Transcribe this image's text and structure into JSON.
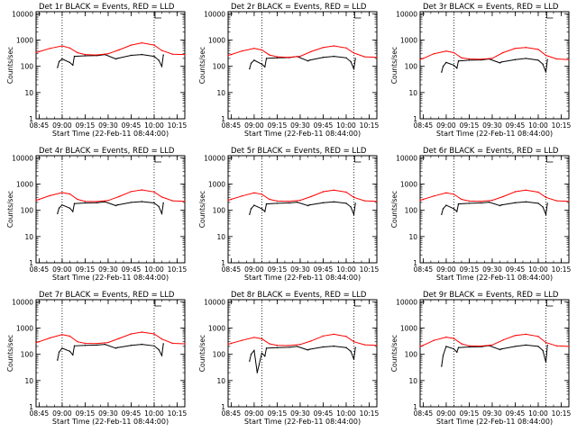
{
  "chart_data": [
    {
      "type": "line",
      "title": "Det 1r BLACK = Events, RED = LLD",
      "xlabel": "Start Time (22-Feb-11 08:44:00)",
      "ylabel": "Counts/sec",
      "x_ticks": [
        "08:45",
        "09:00",
        "09:15",
        "09:30",
        "09:45",
        "10:00",
        "10:15"
      ],
      "y_ticks": [
        "1",
        "10",
        "100",
        "1000",
        "10000"
      ],
      "ylim": [
        1,
        12000
      ],
      "scale_y": "log",
      "grid": false,
      "legend": "none",
      "marker_lines": [
        "09:00",
        "10:00"
      ],
      "series": [
        {
          "color": "#ff0000",
          "x": [
            "08:43",
            "08:45",
            "08:52",
            "09:00",
            "09:05",
            "09:10",
            "09:15",
            "09:22",
            "09:30",
            "09:37",
            "09:45",
            "09:52",
            "10:00",
            "10:05",
            "10:12",
            "10:20"
          ],
          "values": [
            330,
            360,
            480,
            600,
            500,
            330,
            280,
            270,
            300,
            420,
            640,
            780,
            640,
            400,
            290,
            280
          ]
        },
        {
          "color": "#000000",
          "x": [
            "08:57",
            "08:58",
            "09:00",
            "09:05",
            "09:07",
            "09:08",
            "09:15",
            "09:23",
            "09:28",
            "09:35",
            "09:36",
            "09:45",
            "09:52",
            "10:00",
            "10:03",
            "10:05",
            "10:06"
          ],
          "values": [
            90,
            150,
            190,
            140,
            110,
            240,
            250,
            255,
            280,
            190,
            200,
            260,
            280,
            240,
            170,
            100,
            270
          ]
        }
      ]
    },
    {
      "type": "line",
      "title": "Det 2r BLACK = Events, RED = LLD",
      "xlabel": "Start Time (22-Feb-11 08:44:00)",
      "ylabel": "Counts/sec",
      "x_ticks": [
        "08:45",
        "09:00",
        "09:15",
        "09:30",
        "09:45",
        "10:00",
        "10:15"
      ],
      "y_ticks": [
        "1",
        "10",
        "100",
        "1000",
        "10000"
      ],
      "ylim": [
        1,
        12000
      ],
      "scale_y": "log",
      "grid": false,
      "legend": "none",
      "marker_lines": [
        "09:05",
        "10:05"
      ],
      "series": [
        {
          "color": "#ff0000",
          "x": [
            "08:43",
            "08:45",
            "08:52",
            "09:00",
            "09:05",
            "09:10",
            "09:15",
            "09:22",
            "09:30",
            "09:37",
            "09:45",
            "09:52",
            "10:00",
            "10:05",
            "10:12",
            "10:20"
          ],
          "values": [
            260,
            280,
            380,
            480,
            420,
            270,
            230,
            220,
            240,
            360,
            520,
            600,
            500,
            320,
            230,
            220
          ]
        },
        {
          "color": "#000000",
          "x": [
            "08:57",
            "08:58",
            "09:00",
            "09:05",
            "09:07",
            "09:08",
            "09:15",
            "09:23",
            "09:28",
            "09:35",
            "09:36",
            "09:45",
            "09:52",
            "10:00",
            "10:03",
            "10:05",
            "10:06"
          ],
          "values": [
            80,
            130,
            170,
            120,
            95,
            200,
            210,
            215,
            235,
            160,
            170,
            220,
            240,
            210,
            150,
            80,
            200
          ]
        }
      ]
    },
    {
      "type": "line",
      "title": "Det 3r BLACK = Events, RED = LLD",
      "xlabel": "Start Time (22-Feb-11 08:44:00)",
      "ylabel": "Counts/sec",
      "x_ticks": [
        "08:45",
        "09:00",
        "09:15",
        "09:30",
        "09:45",
        "10:00",
        "10:15"
      ],
      "y_ticks": [
        "1",
        "10",
        "100",
        "1000",
        "10000"
      ],
      "ylim": [
        1,
        12000
      ],
      "scale_y": "log",
      "grid": false,
      "legend": "none",
      "marker_lines": [
        "09:05",
        "10:05"
      ],
      "series": [
        {
          "color": "#ff0000",
          "x": [
            "08:43",
            "08:45",
            "08:52",
            "09:00",
            "09:05",
            "09:10",
            "09:15",
            "09:22",
            "09:30",
            "09:37",
            "09:45",
            "09:52",
            "10:00",
            "10:05",
            "10:12",
            "10:20"
          ],
          "values": [
            180,
            200,
            300,
            380,
            330,
            210,
            190,
            185,
            200,
            330,
            480,
            520,
            440,
            260,
            190,
            180
          ]
        },
        {
          "color": "#000000",
          "x": [
            "08:57",
            "08:58",
            "09:00",
            "09:05",
            "09:07",
            "09:08",
            "09:15",
            "09:23",
            "09:28",
            "09:35",
            "09:36",
            "09:45",
            "09:52",
            "10:00",
            "10:03",
            "10:05",
            "10:06"
          ],
          "values": [
            60,
            100,
            140,
            110,
            85,
            160,
            170,
            175,
            190,
            135,
            145,
            180,
            200,
            170,
            120,
            60,
            180
          ]
        }
      ]
    },
    {
      "type": "line",
      "title": "Det 4r BLACK = Events, RED = LLD",
      "xlabel": "Start Time (22-Feb-11 08:44:00)",
      "ylabel": "Counts/sec",
      "x_ticks": [
        "08:45",
        "09:00",
        "09:15",
        "09:30",
        "09:45",
        "10:00",
        "10:15"
      ],
      "y_ticks": [
        "1",
        "10",
        "100",
        "1000",
        "10000"
      ],
      "ylim": [
        1,
        12000
      ],
      "scale_y": "log",
      "grid": false,
      "legend": "none",
      "marker_lines": [
        "09:00",
        "10:00"
      ],
      "series": [
        {
          "color": "#ff0000",
          "x": [
            "08:43",
            "08:45",
            "08:52",
            "09:00",
            "09:05",
            "09:10",
            "09:15",
            "09:22",
            "09:30",
            "09:37",
            "09:45",
            "09:52",
            "10:00",
            "10:05",
            "10:12",
            "10:20"
          ],
          "values": [
            240,
            260,
            360,
            470,
            420,
            260,
            220,
            215,
            235,
            330,
            520,
            600,
            500,
            320,
            230,
            220
          ]
        },
        {
          "color": "#000000",
          "x": [
            "08:57",
            "08:58",
            "09:00",
            "09:05",
            "09:07",
            "09:08",
            "09:15",
            "09:23",
            "09:28",
            "09:35",
            "09:36",
            "09:45",
            "09:52",
            "10:00",
            "10:03",
            "10:05",
            "10:06"
          ],
          "values": [
            75,
            120,
            160,
            120,
            90,
            180,
            190,
            195,
            210,
            150,
            160,
            200,
            215,
            190,
            140,
            75,
            190
          ]
        }
      ]
    },
    {
      "type": "line",
      "title": "Det 5r BLACK = Events, RED = LLD",
      "xlabel": "Start Time (22-Feb-11 08:44:00)",
      "ylabel": "Counts/sec",
      "x_ticks": [
        "08:45",
        "09:00",
        "09:15",
        "09:30",
        "09:45",
        "10:00",
        "10:15"
      ],
      "y_ticks": [
        "1",
        "10",
        "100",
        "1000",
        "10000"
      ],
      "ylim": [
        1,
        12000
      ],
      "scale_y": "log",
      "grid": false,
      "legend": "none",
      "marker_lines": [
        "09:05",
        "10:05"
      ],
      "series": [
        {
          "color": "#ff0000",
          "x": [
            "08:43",
            "08:45",
            "08:52",
            "09:00",
            "09:05",
            "09:10",
            "09:15",
            "09:22",
            "09:30",
            "09:37",
            "09:45",
            "09:52",
            "10:00",
            "10:05",
            "10:12",
            "10:20"
          ],
          "values": [
            240,
            260,
            350,
            460,
            410,
            260,
            225,
            220,
            240,
            330,
            510,
            590,
            490,
            310,
            230,
            220
          ]
        },
        {
          "color": "#000000",
          "x": [
            "08:57",
            "08:58",
            "09:00",
            "09:05",
            "09:07",
            "09:08",
            "09:15",
            "09:23",
            "09:28",
            "09:35",
            "09:36",
            "09:45",
            "09:52",
            "10:00",
            "10:03",
            "10:05",
            "10:06"
          ],
          "values": [
            70,
            115,
            155,
            115,
            90,
            175,
            185,
            190,
            205,
            150,
            160,
            195,
            210,
            185,
            135,
            70,
            185
          ]
        }
      ]
    },
    {
      "type": "line",
      "title": "Det 6r BLACK = Events, RED = LLD",
      "xlabel": "Start Time (22-Feb-11 08:44:00)",
      "ylabel": "Counts/sec",
      "x_ticks": [
        "08:45",
        "09:00",
        "09:15",
        "09:30",
        "09:45",
        "10:00",
        "10:15"
      ],
      "y_ticks": [
        "1",
        "10",
        "100",
        "1000",
        "10000"
      ],
      "ylim": [
        1,
        12000
      ],
      "scale_y": "log",
      "grid": false,
      "legend": "none",
      "marker_lines": [
        "09:05",
        "10:05"
      ],
      "series": [
        {
          "color": "#ff0000",
          "x": [
            "08:43",
            "08:45",
            "08:52",
            "09:00",
            "09:05",
            "09:10",
            "09:15",
            "09:22",
            "09:30",
            "09:37",
            "09:45",
            "09:52",
            "10:00",
            "10:05",
            "10:12",
            "10:20"
          ],
          "values": [
            240,
            260,
            350,
            460,
            410,
            260,
            225,
            220,
            240,
            330,
            510,
            590,
            490,
            310,
            230,
            220
          ]
        },
        {
          "color": "#000000",
          "x": [
            "08:57",
            "08:58",
            "09:00",
            "09:05",
            "09:07",
            "09:08",
            "09:15",
            "09:23",
            "09:28",
            "09:35",
            "09:36",
            "09:45",
            "09:52",
            "10:00",
            "10:03",
            "10:05",
            "10:06"
          ],
          "values": [
            70,
            115,
            155,
            115,
            90,
            175,
            185,
            190,
            205,
            150,
            160,
            195,
            210,
            185,
            135,
            70,
            185
          ]
        }
      ]
    },
    {
      "type": "line",
      "title": "Det 7r BLACK = Events, RED = LLD",
      "xlabel": "Start Time (22-Feb-11 08:44:00)",
      "ylabel": "Counts/sec",
      "x_ticks": [
        "08:45",
        "09:00",
        "09:15",
        "09:30",
        "09:45",
        "10:00",
        "10:15"
      ],
      "y_ticks": [
        "1",
        "10",
        "100",
        "1000",
        "10000"
      ],
      "ylim": [
        1,
        12000
      ],
      "scale_y": "log",
      "grid": false,
      "legend": "none",
      "marker_lines": [
        "09:00",
        "10:00"
      ],
      "series": [
        {
          "color": "#ff0000",
          "x": [
            "08:43",
            "08:45",
            "08:52",
            "09:00",
            "09:05",
            "09:10",
            "09:15",
            "09:22",
            "09:30",
            "09:37",
            "09:45",
            "09:52",
            "10:00",
            "10:05",
            "10:12",
            "10:20"
          ],
          "values": [
            280,
            300,
            420,
            560,
            490,
            300,
            260,
            255,
            280,
            400,
            600,
            700,
            600,
            380,
            260,
            250
          ]
        },
        {
          "color": "#000000",
          "x": [
            "08:57",
            "08:58",
            "09:00",
            "09:05",
            "09:07",
            "09:08",
            "09:15",
            "09:23",
            "09:28",
            "09:35",
            "09:36",
            "09:45",
            "09:52",
            "10:00",
            "10:03",
            "10:05",
            "10:06"
          ],
          "values": [
            60,
            120,
            170,
            130,
            95,
            210,
            220,
            225,
            240,
            170,
            180,
            220,
            240,
            210,
            150,
            90,
            250
          ]
        }
      ]
    },
    {
      "type": "line",
      "title": "Det 8r BLACK = Events, RED = LLD",
      "xlabel": "Start Time (22-Feb-11 08:44:00)",
      "ylabel": "Counts/sec",
      "x_ticks": [
        "08:45",
        "09:00",
        "09:15",
        "09:30",
        "09:45",
        "10:00",
        "10:15"
      ],
      "y_ticks": [
        "1",
        "10",
        "100",
        "1000",
        "10000"
      ],
      "ylim": [
        1,
        12000
      ],
      "scale_y": "log",
      "grid": false,
      "legend": "none",
      "marker_lines": [
        "09:05",
        "10:05"
      ],
      "series": [
        {
          "color": "#ff0000",
          "x": [
            "08:43",
            "08:45",
            "08:52",
            "09:00",
            "09:05",
            "09:10",
            "09:15",
            "09:22",
            "09:30",
            "09:37",
            "09:45",
            "09:52",
            "10:00",
            "10:05",
            "10:12",
            "10:20"
          ],
          "values": [
            240,
            260,
            340,
            440,
            390,
            250,
            220,
            215,
            235,
            320,
            500,
            580,
            480,
            300,
            230,
            220
          ]
        },
        {
          "color": "#000000",
          "x": [
            "08:57",
            "08:58",
            "09:00",
            "09:02",
            "09:05",
            "09:07",
            "09:08",
            "09:15",
            "09:23",
            "09:28",
            "09:35",
            "09:36",
            "09:45",
            "09:52",
            "10:00",
            "10:03",
            "10:05",
            "10:06"
          ],
          "values": [
            55,
            100,
            140,
            20,
            110,
            85,
            170,
            180,
            185,
            200,
            145,
            155,
            190,
            205,
            180,
            130,
            65,
            180
          ]
        }
      ]
    },
    {
      "type": "line",
      "title": "Det 9r BLACK = Events, RED = LLD",
      "xlabel": "Start Time (22-Feb-11 08:44:00)",
      "ylabel": "Counts/sec",
      "x_ticks": [
        "08:45",
        "09:00",
        "09:15",
        "09:30",
        "09:45",
        "10:00",
        "10:15"
      ],
      "y_ticks": [
        "1",
        "10",
        "100",
        "1000",
        "10000"
      ],
      "ylim": [
        1,
        12000
      ],
      "scale_y": "log",
      "grid": false,
      "legend": "none",
      "marker_lines": [
        "09:05",
        "10:05"
      ],
      "series": [
        {
          "color": "#ff0000",
          "x": [
            "08:43",
            "08:45",
            "08:52",
            "09:00",
            "09:05",
            "09:10",
            "09:15",
            "09:22",
            "09:30",
            "09:37",
            "09:45",
            "09:52",
            "10:00",
            "10:05",
            "10:12",
            "10:20"
          ],
          "values": [
            200,
            220,
            340,
            450,
            400,
            250,
            210,
            205,
            225,
            350,
            520,
            580,
            480,
            280,
            210,
            200
          ]
        },
        {
          "color": "#000000",
          "x": [
            "08:57",
            "08:58",
            "09:00",
            "09:05",
            "09:07",
            "09:08",
            "09:15",
            "09:23",
            "09:28",
            "09:35",
            "09:36",
            "09:45",
            "09:52",
            "10:00",
            "10:03",
            "10:05",
            "10:06"
          ],
          "values": [
            35,
            90,
            200,
            160,
            120,
            180,
            190,
            195,
            215,
            150,
            160,
            200,
            225,
            200,
            140,
            50,
            220
          ]
        }
      ]
    }
  ]
}
